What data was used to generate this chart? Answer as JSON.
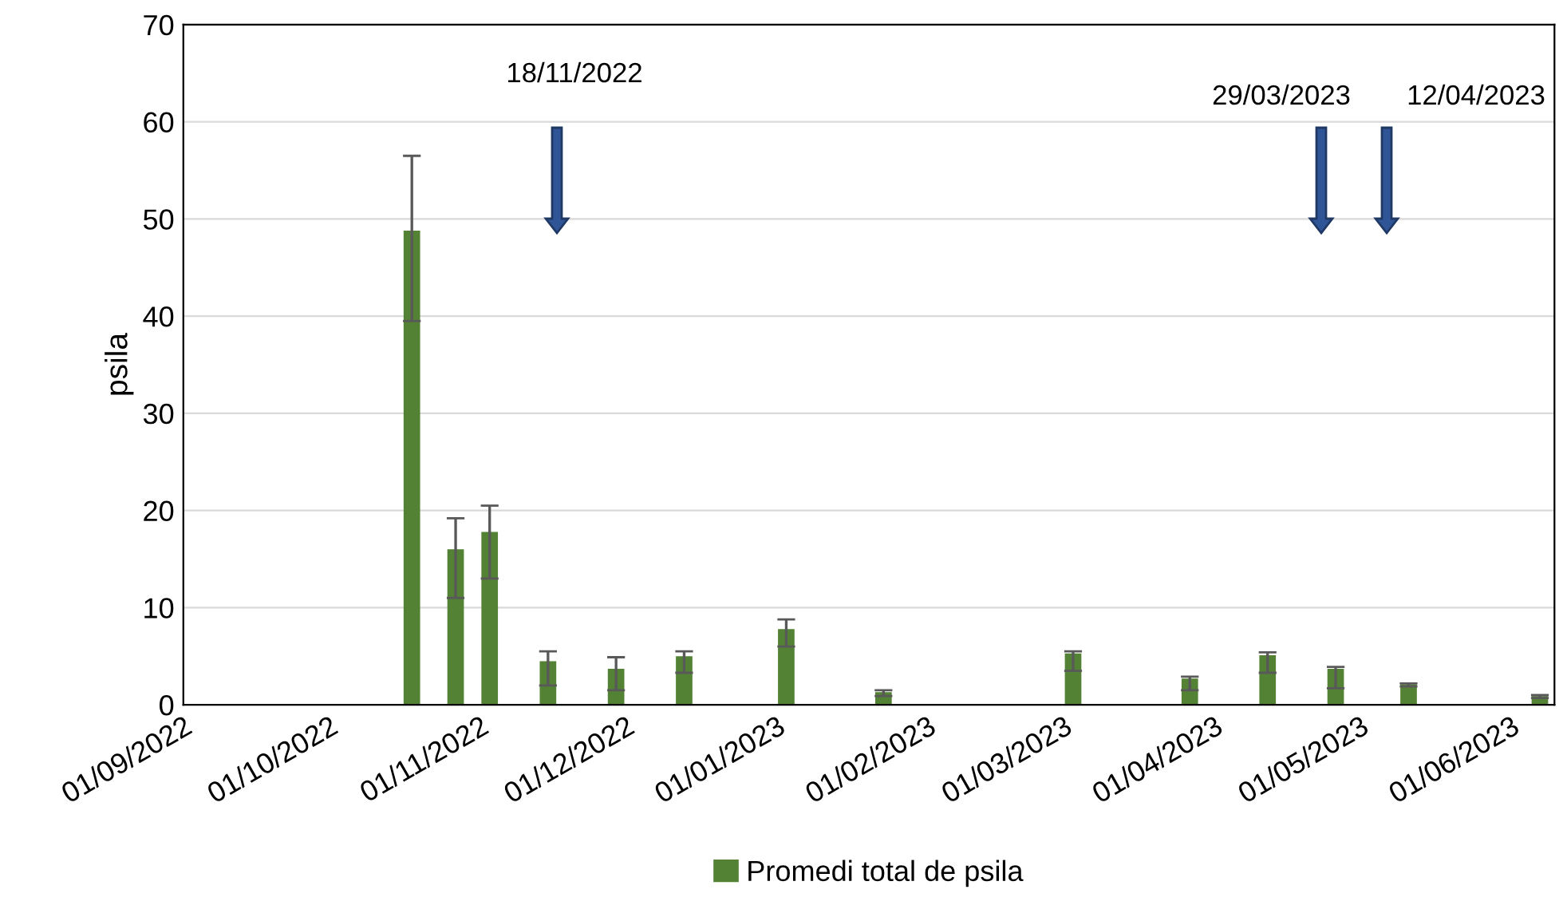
{
  "chart_data": {
    "type": "bar",
    "ylabel": "psila",
    "x": [
      "2022-10-18",
      "2022-10-27",
      "2022-11-03",
      "2022-11-15",
      "2022-11-29",
      "2022-12-13",
      "2023-01-03",
      "2023-01-23",
      "2023-03-03",
      "2023-03-27",
      "2023-04-12",
      "2023-04-26",
      "2023-05-11",
      "2023-06-07"
    ],
    "series": [
      {
        "name": "Promedi total de psila",
        "color": "#548235",
        "values": [
          48.8,
          16,
          17.8,
          4.5,
          3.7,
          5,
          7.8,
          1.3,
          5.3,
          2.7,
          5.1,
          3.7,
          2.1,
          0.9
        ],
        "errors": [
          [
            39.5,
            56.5
          ],
          [
            11,
            19.2
          ],
          [
            13,
            20.5
          ],
          [
            2,
            5.5
          ],
          [
            1.5,
            4.9
          ],
          [
            3.3,
            5.5
          ],
          [
            6,
            8.8
          ],
          [
            0.9,
            1.5
          ],
          [
            3.5,
            5.5
          ],
          [
            1.5,
            2.9
          ],
          [
            3.3,
            5.4
          ],
          [
            1.7,
            3.9
          ],
          [
            1.9,
            2.2
          ],
          [
            0.7,
            1.0
          ]
        ]
      }
    ],
    "xlim": [
      "2022-09-01",
      "2023-06-10"
    ],
    "xticks": [
      {
        "value": "2022-09-01",
        "label": "01/09/2022"
      },
      {
        "value": "2022-10-01",
        "label": "01/10/2022"
      },
      {
        "value": "2022-11-01",
        "label": "01/11/2022"
      },
      {
        "value": "2022-12-01",
        "label": "01/12/2022"
      },
      {
        "value": "2023-01-01",
        "label": "01/01/2023"
      },
      {
        "value": "2023-02-01",
        "label": "01/02/2023"
      },
      {
        "value": "2023-03-01",
        "label": "01/03/2023"
      },
      {
        "value": "2023-04-01",
        "label": "01/04/2023"
      },
      {
        "value": "2023-05-01",
        "label": "01/05/2023"
      },
      {
        "value": "2023-06-01",
        "label": "01/06/2023"
      }
    ],
    "ylim": [
      0,
      70
    ],
    "yticks": [
      0,
      10,
      20,
      30,
      40,
      50,
      60,
      70
    ],
    "grid": "y",
    "legend": "bottom",
    "annotations": [
      "18/11/2022",
      "29/03/2023",
      "12/04/2023"
    ]
  }
}
